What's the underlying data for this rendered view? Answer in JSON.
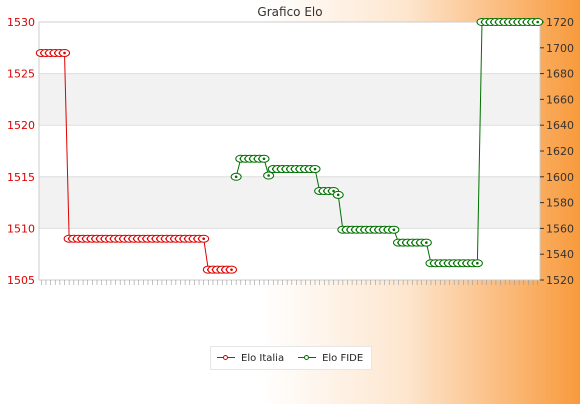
{
  "chart_data": {
    "type": "line",
    "title": "Grafico Elo",
    "grid": true,
    "legend_position": "bottom",
    "y_left": {
      "range": [
        1505,
        1530
      ],
      "ticks": [
        1505,
        1510,
        1515,
        1520,
        1525,
        1530
      ]
    },
    "y_right": {
      "range": [
        1520,
        1720
      ],
      "ticks": [
        1520,
        1540,
        1560,
        1580,
        1600,
        1620,
        1640,
        1660,
        1680,
        1700,
        1720
      ]
    },
    "series": [
      {
        "name": "Elo Italia",
        "axis": "left",
        "color": "#dd0000",
        "points": [
          [
            0,
            1527
          ],
          [
            1,
            1527
          ],
          [
            2,
            1527
          ],
          [
            3,
            1527
          ],
          [
            4,
            1527
          ],
          [
            5,
            1527
          ],
          [
            6,
            1509
          ],
          [
            7,
            1509
          ],
          [
            8,
            1509
          ],
          [
            9,
            1509
          ],
          [
            10,
            1509
          ],
          [
            11,
            1509
          ],
          [
            12,
            1509
          ],
          [
            13,
            1509
          ],
          [
            14,
            1509
          ],
          [
            15,
            1509
          ],
          [
            16,
            1509
          ],
          [
            17,
            1509
          ],
          [
            18,
            1509
          ],
          [
            19,
            1509
          ],
          [
            20,
            1509
          ],
          [
            21,
            1509
          ],
          [
            22,
            1509
          ],
          [
            23,
            1509
          ],
          [
            24,
            1509
          ],
          [
            25,
            1509
          ],
          [
            26,
            1509
          ],
          [
            27,
            1509
          ],
          [
            28,
            1509
          ],
          [
            29,
            1509
          ],
          [
            30,
            1509
          ],
          [
            31,
            1509
          ],
          [
            32,
            1509
          ],
          [
            33,
            1509
          ],
          [
            34,
            1509
          ],
          [
            35,
            1509
          ],
          [
            36,
            1506
          ],
          [
            37,
            1506
          ],
          [
            38,
            1506
          ],
          [
            39,
            1506
          ],
          [
            40,
            1506
          ],
          [
            41,
            1506
          ]
        ]
      },
      {
        "name": "Elo FIDE",
        "axis": "right",
        "color": "#007000",
        "points": [
          [
            42,
            1600
          ],
          [
            43,
            1614
          ],
          [
            44,
            1614
          ],
          [
            45,
            1614
          ],
          [
            46,
            1614
          ],
          [
            47,
            1614
          ],
          [
            48,
            1614
          ],
          [
            49,
            1601
          ],
          [
            50,
            1606
          ],
          [
            51,
            1606
          ],
          [
            52,
            1606
          ],
          [
            53,
            1606
          ],
          [
            54,
            1606
          ],
          [
            55,
            1606
          ],
          [
            56,
            1606
          ],
          [
            57,
            1606
          ],
          [
            58,
            1606
          ],
          [
            59,
            1606
          ],
          [
            60,
            1589
          ],
          [
            61,
            1589
          ],
          [
            62,
            1589
          ],
          [
            63,
            1589
          ],
          [
            64,
            1586
          ],
          [
            65,
            1559
          ],
          [
            66,
            1559
          ],
          [
            67,
            1559
          ],
          [
            68,
            1559
          ],
          [
            69,
            1559
          ],
          [
            70,
            1559
          ],
          [
            71,
            1559
          ],
          [
            72,
            1559
          ],
          [
            73,
            1559
          ],
          [
            74,
            1559
          ],
          [
            75,
            1559
          ],
          [
            76,
            1559
          ],
          [
            77,
            1549
          ],
          [
            78,
            1549
          ],
          [
            79,
            1549
          ],
          [
            80,
            1549
          ],
          [
            81,
            1549
          ],
          [
            82,
            1549
          ],
          [
            83,
            1549
          ],
          [
            84,
            1533
          ],
          [
            85,
            1533
          ],
          [
            86,
            1533
          ],
          [
            87,
            1533
          ],
          [
            88,
            1533
          ],
          [
            89,
            1533
          ],
          [
            90,
            1533
          ],
          [
            91,
            1533
          ],
          [
            92,
            1533
          ],
          [
            93,
            1533
          ],
          [
            94,
            1533
          ],
          [
            95,
            1720
          ],
          [
            96,
            1720
          ],
          [
            97,
            1720
          ],
          [
            98,
            1720
          ],
          [
            99,
            1720
          ],
          [
            100,
            1720
          ],
          [
            101,
            1720
          ],
          [
            102,
            1720
          ],
          [
            103,
            1720
          ],
          [
            104,
            1720
          ],
          [
            105,
            1720
          ],
          [
            106,
            1720
          ],
          [
            107,
            1720
          ]
        ]
      }
    ],
    "x_count": 108
  }
}
